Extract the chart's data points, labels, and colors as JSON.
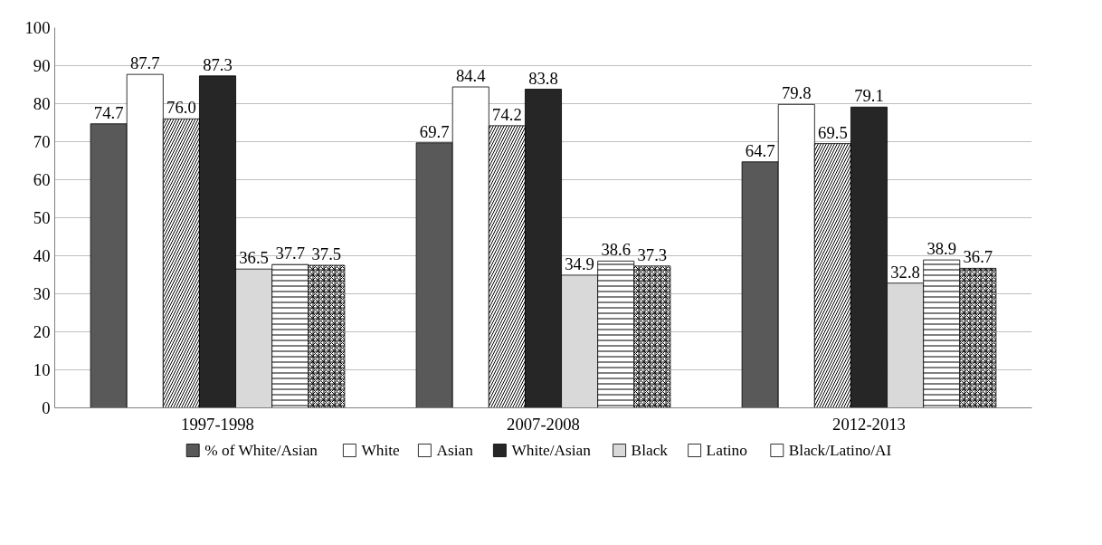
{
  "chart_data": {
    "type": "bar",
    "categories": [
      "1997-1998",
      "2007-2008",
      "2012-2013"
    ],
    "series": [
      {
        "name": "% of White/Asian",
        "color": "#595959",
        "values": [
          74.7,
          69.7,
          64.7
        ]
      },
      {
        "name": "White",
        "color": "#ffffff",
        "values": [
          87.7,
          84.4,
          79.8
        ]
      },
      {
        "name": "Asian",
        "color": "#ffffff",
        "values": [
          76.0,
          74.2,
          69.5
        ],
        "value_labels": [
          "76.0",
          "74.2",
          "69.5"
        ]
      },
      {
        "name": "White/Asian",
        "color": "#262626",
        "values": [
          87.3,
          83.8,
          79.1
        ]
      },
      {
        "name": "Black",
        "color": "#d9d9d9",
        "values": [
          36.5,
          34.9,
          32.8
        ]
      },
      {
        "name": "Latino",
        "color": "#ffffff",
        "values": [
          37.7,
          38.6,
          38.9
        ]
      },
      {
        "name": "Black/Latino/AI",
        "color": "#ffffff",
        "values": [
          37.5,
          37.3,
          36.7
        ]
      }
    ],
    "ylim": [
      0,
      100
    ],
    "yticks": [
      0,
      10,
      20,
      30,
      40,
      50,
      60,
      70,
      80,
      90,
      100
    ],
    "grid": "y",
    "legend": "bottom",
    "data_labels": true
  }
}
